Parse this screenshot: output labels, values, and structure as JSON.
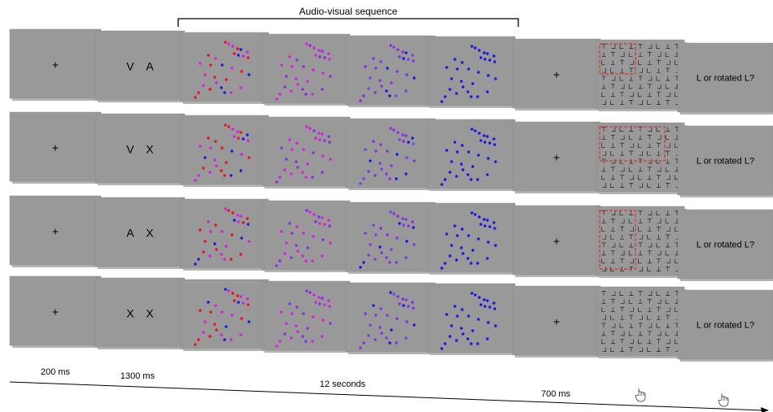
{
  "header": {
    "sequence_label": "Audio-visual sequence"
  },
  "fixation_symbol": "+",
  "rows": [
    {
      "cue": [
        "V",
        "A"
      ],
      "search_highlight": "top-left"
    },
    {
      "cue": [
        "V",
        "X"
      ],
      "search_highlight": "top-wide"
    },
    {
      "cue": [
        "A",
        "X"
      ],
      "search_highlight": "left-column"
    },
    {
      "cue": [
        "X",
        "X"
      ],
      "search_highlight": "none"
    }
  ],
  "question_text": "L or rotated L?",
  "timeline": {
    "labels": [
      "200 ms",
      "1300 ms",
      "12 seconds",
      "700 ms"
    ],
    "response_icons": [
      "hand-pointer-icon",
      "hand-pointer-icon"
    ]
  },
  "colors": {
    "panel": "#999999",
    "panel_shadow": "#b4b4b4",
    "red_dot": "#e8121e",
    "magenta_dot": "#d61fe0",
    "purple_dot": "#8a2be2",
    "blue_dot": "#1a16e6",
    "highlight_box": "#e02020"
  },
  "dot_frames": [
    "red-magenta-blue",
    "magenta-purple",
    "purple-blue",
    "blue"
  ]
}
